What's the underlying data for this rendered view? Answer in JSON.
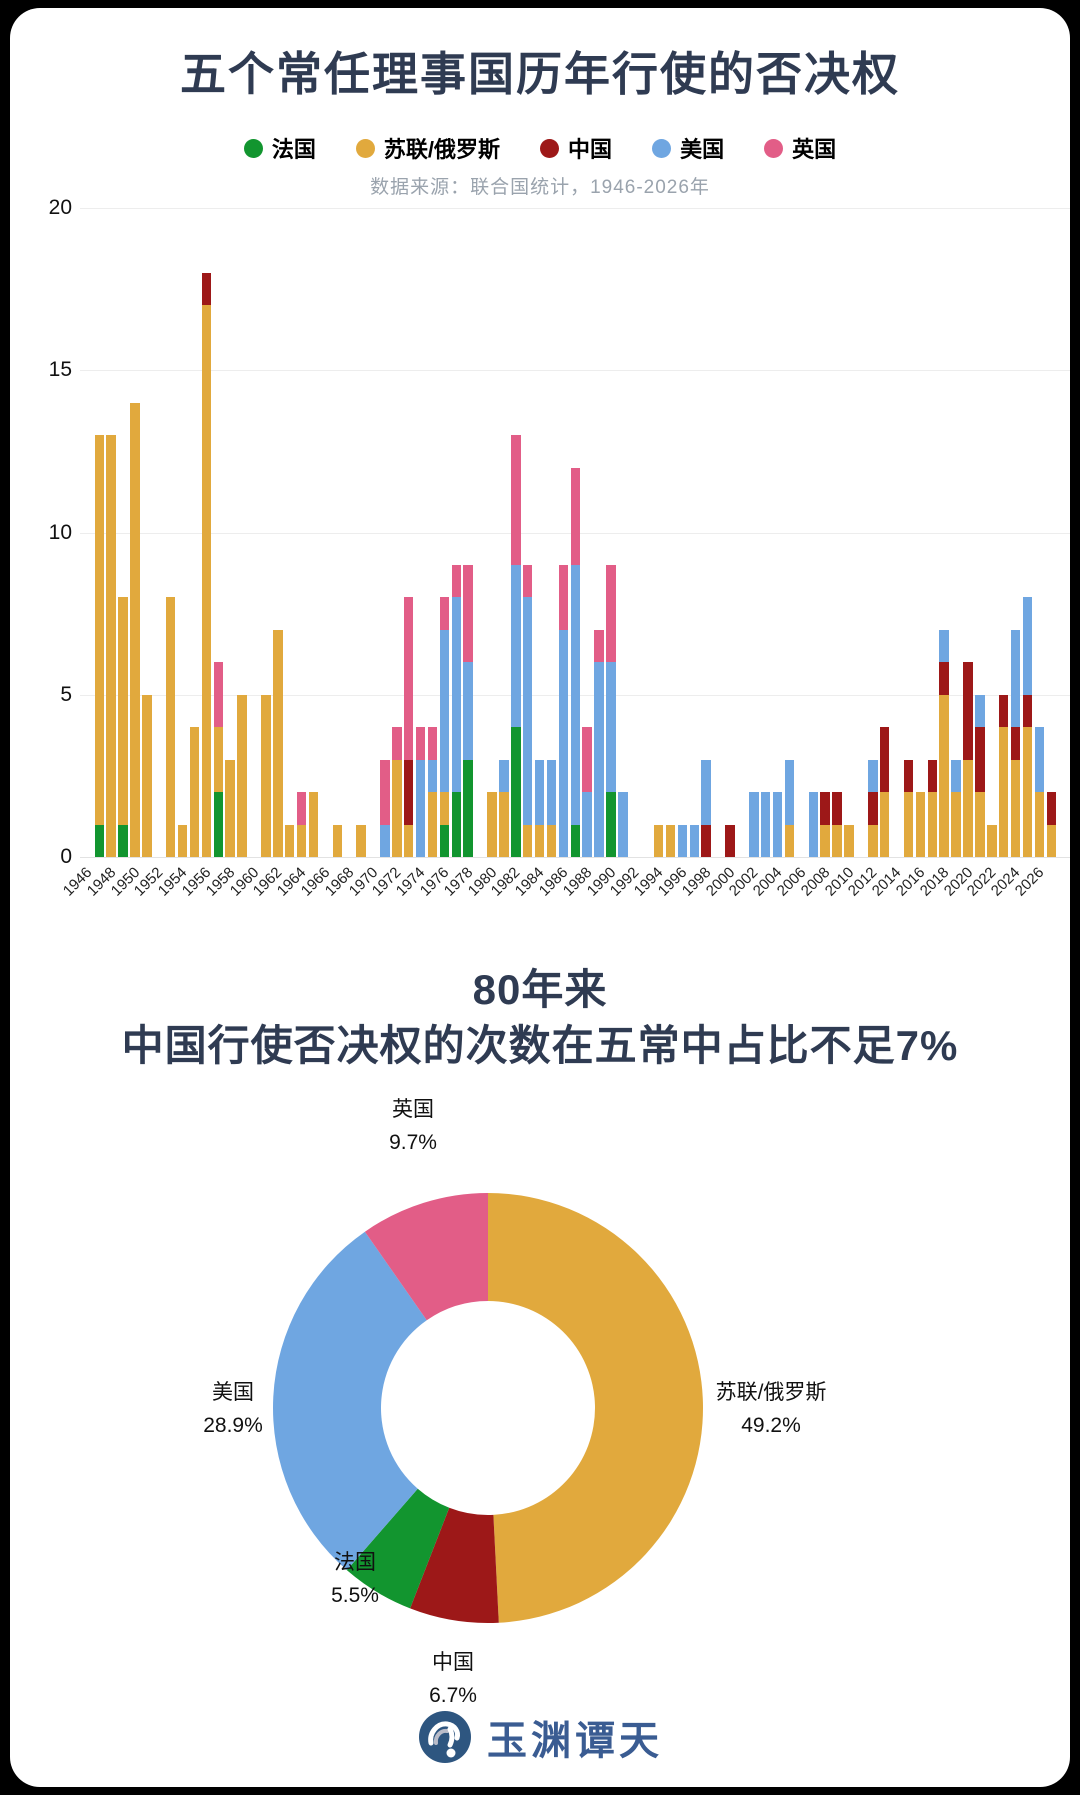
{
  "page": {
    "background": "#000000",
    "card_background": "#ffffff"
  },
  "colors": {
    "title_navy": "#2f3b52",
    "subtitle_gray": "#9aa3ad",
    "france_green": "#12952f",
    "ussr_gold": "#e1a93d",
    "china_red": "#9d1818",
    "us_blue": "#6fa6e1",
    "uk_pink": "#e25d87",
    "logo_blue": "#3a5c92",
    "logo_icon_navy": "#2e5680"
  },
  "chart1": {
    "title": "五个常任理事国历年行使的否决权",
    "source_note": "数据来源：联合国统计，1946-2026年",
    "legend": [
      {
        "label": "法国",
        "color": "#12952f"
      },
      {
        "label": "苏联/俄罗斯",
        "color": "#e1a93d"
      },
      {
        "label": "中国",
        "color": "#9d1818"
      },
      {
        "label": "美国",
        "color": "#6fa6e1"
      },
      {
        "label": "英国",
        "color": "#e25d87"
      }
    ]
  },
  "chart2": {
    "title_line1": "80年来",
    "title_line2": "中国行使否决权的次数在五常中占比不足7%"
  },
  "logo": {
    "text": "玉渊谭天"
  },
  "chart_data": [
    {
      "type": "bar",
      "stacked": true,
      "title": "五个常任理事国历年行使的否决权",
      "xlabel": "",
      "ylabel": "",
      "ylim": [
        0,
        20
      ],
      "y_ticks": [
        0,
        5,
        10,
        15,
        20
      ],
      "grid": true,
      "start_year": 1946,
      "end_year": 2026,
      "x_ticks": [
        1946,
        1948,
        1950,
        1952,
        1954,
        1956,
        1958,
        1960,
        1962,
        1964,
        1966,
        1968,
        1970,
        1972,
        1974,
        1976,
        1978,
        1980,
        1982,
        1984,
        1986,
        1988,
        1990,
        1992,
        1994,
        1996,
        1998,
        2000,
        2002,
        2004,
        2006,
        2008,
        2010,
        2012,
        2014,
        2016,
        2018,
        2020,
        2022,
        2024,
        2026
      ],
      "stack_order_bottom_to_top": [
        "法国",
        "苏联/俄罗斯",
        "中国",
        "美国",
        "英国"
      ],
      "series": [
        {
          "name": "法国",
          "color": "#12952f",
          "values": [
            1,
            0,
            1,
            0,
            0,
            0,
            0,
            0,
            0,
            0,
            2,
            0,
            0,
            0,
            0,
            0,
            0,
            0,
            0,
            0,
            0,
            0,
            0,
            0,
            0,
            0,
            0,
            0,
            0,
            1,
            2,
            3,
            0,
            0,
            0,
            4,
            0,
            0,
            0,
            0,
            1,
            0,
            0,
            2,
            0,
            0,
            0,
            0,
            0,
            0,
            0,
            0,
            0,
            0,
            0,
            0,
            0,
            0,
            0,
            0,
            0,
            0,
            0,
            0,
            0,
            0,
            0,
            0,
            0,
            0,
            0,
            0,
            0,
            0,
            0,
            0,
            0,
            0,
            0,
            0,
            0
          ]
        },
        {
          "name": "苏联/俄罗斯",
          "color": "#e1a93d",
          "values": [
            12,
            13,
            7,
            14,
            5,
            0,
            8,
            1,
            4,
            17,
            2,
            3,
            5,
            0,
            5,
            7,
            1,
            1,
            2,
            0,
            1,
            0,
            1,
            0,
            0,
            3,
            1,
            0,
            2,
            1,
            0,
            0,
            0,
            2,
            2,
            0,
            1,
            1,
            1,
            0,
            0,
            0,
            0,
            0,
            0,
            0,
            0,
            1,
            1,
            0,
            0,
            0,
            0,
            0,
            0,
            0,
            0,
            0,
            1,
            0,
            0,
            1,
            1,
            1,
            0,
            1,
            2,
            0,
            2,
            2,
            2,
            5,
            2,
            3,
            2,
            1,
            4,
            3,
            4,
            2,
            1
          ]
        },
        {
          "name": "中国",
          "color": "#9d1818",
          "values": [
            0,
            0,
            0,
            0,
            0,
            0,
            0,
            0,
            0,
            1,
            0,
            0,
            0,
            0,
            0,
            0,
            0,
            0,
            0,
            0,
            0,
            0,
            0,
            0,
            0,
            0,
            2,
            0,
            0,
            0,
            0,
            0,
            0,
            0,
            0,
            0,
            0,
            0,
            0,
            0,
            0,
            0,
            0,
            0,
            0,
            0,
            0,
            0,
            0,
            0,
            0,
            1,
            0,
            1,
            0,
            0,
            0,
            0,
            0,
            0,
            0,
            1,
            1,
            0,
            0,
            1,
            2,
            0,
            1,
            0,
            1,
            1,
            0,
            3,
            2,
            0,
            1,
            1,
            1,
            0,
            1
          ]
        },
        {
          "name": "美国",
          "color": "#6fa6e1",
          "values": [
            0,
            0,
            0,
            0,
            0,
            0,
            0,
            0,
            0,
            0,
            0,
            0,
            0,
            0,
            0,
            0,
            0,
            0,
            0,
            0,
            0,
            0,
            0,
            0,
            1,
            0,
            0,
            3,
            1,
            5,
            6,
            3,
            0,
            0,
            1,
            5,
            7,
            2,
            2,
            7,
            8,
            2,
            6,
            4,
            2,
            0,
            0,
            0,
            0,
            1,
            1,
            2,
            0,
            0,
            0,
            2,
            2,
            2,
            2,
            0,
            2,
            0,
            0,
            0,
            0,
            1,
            0,
            0,
            0,
            0,
            0,
            1,
            1,
            0,
            1,
            0,
            0,
            3,
            3,
            2,
            0
          ]
        },
        {
          "name": "英国",
          "color": "#e25d87",
          "values": [
            0,
            0,
            0,
            0,
            0,
            0,
            0,
            0,
            0,
            0,
            2,
            0,
            0,
            0,
            0,
            0,
            0,
            1,
            0,
            0,
            0,
            0,
            0,
            0,
            2,
            1,
            5,
            1,
            1,
            1,
            1,
            3,
            0,
            0,
            0,
            4,
            1,
            0,
            0,
            2,
            3,
            2,
            1,
            3,
            0,
            0,
            0,
            0,
            0,
            0,
            0,
            0,
            0,
            0,
            0,
            0,
            0,
            0,
            0,
            0,
            0,
            0,
            0,
            0,
            0,
            0,
            0,
            0,
            0,
            0,
            0,
            0,
            0,
            0,
            0,
            0,
            0,
            0,
            0,
            0,
            0
          ]
        }
      ]
    },
    {
      "type": "pie",
      "donut": true,
      "title": "80年来 中国行使否决权的次数在五常中占比不足7%",
      "start_angle_deg_from_top": 0,
      "direction": "clockwise",
      "segments": [
        {
          "label": "苏联/俄罗斯",
          "pct": 49.2,
          "color": "#e1a93d"
        },
        {
          "label": "中国",
          "pct": 6.7,
          "color": "#9d1818"
        },
        {
          "label": "法国",
          "pct": 5.5,
          "color": "#12952f"
        },
        {
          "label": "美国",
          "pct": 28.9,
          "color": "#6fa6e1"
        },
        {
          "label": "英国",
          "pct": 9.7,
          "color": "#e25d87"
        }
      ]
    }
  ]
}
